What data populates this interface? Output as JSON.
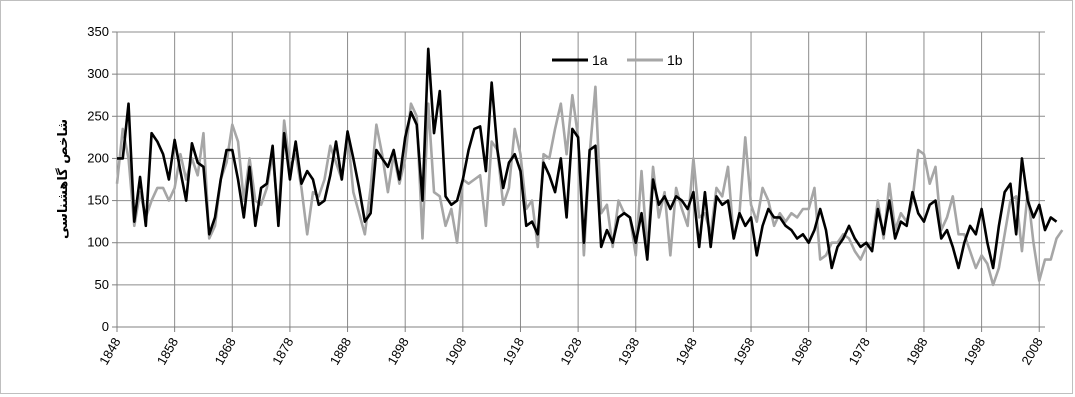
{
  "chart_data": {
    "type": "line",
    "title": "",
    "xlabel": "",
    "ylabel": "شاخص گاهشناسی",
    "xlim": [
      1848,
      2009
    ],
    "ylim": [
      0,
      350
    ],
    "grid": true,
    "legend_position": "top-center",
    "x_ticks": [
      1848,
      1858,
      1868,
      1878,
      1888,
      1898,
      1908,
      1918,
      1928,
      1938,
      1948,
      1958,
      1968,
      1978,
      1988,
      1998,
      2008
    ],
    "y_ticks": [
      0,
      50,
      100,
      150,
      200,
      250,
      300,
      350
    ],
    "x_start": 1848,
    "series": [
      {
        "name": "1a",
        "color": "#000000",
        "values": [
          200,
          200,
          265,
          125,
          178,
          120,
          230,
          220,
          205,
          175,
          222,
          185,
          150,
          218,
          195,
          190,
          110,
          130,
          175,
          210,
          210,
          175,
          130,
          190,
          120,
          165,
          170,
          215,
          120,
          230,
          175,
          220,
          170,
          185,
          175,
          145,
          150,
          180,
          220,
          175,
          232,
          200,
          165,
          125,
          135,
          210,
          200,
          190,
          210,
          175,
          225,
          255,
          240,
          150,
          330,
          230,
          280,
          155,
          145,
          150,
          175,
          210,
          235,
          238,
          185,
          290,
          210,
          165,
          195,
          205,
          185,
          120,
          125,
          110,
          195,
          180,
          160,
          200,
          130,
          235,
          225,
          100,
          210,
          215,
          95,
          115,
          100,
          130,
          135,
          130,
          100,
          135,
          80,
          175,
          145,
          155,
          140,
          155,
          150,
          140,
          160,
          95,
          160,
          95,
          155,
          145,
          150,
          105,
          135,
          120,
          130,
          85,
          120,
          140,
          130,
          130,
          120,
          115,
          105,
          110,
          100,
          115,
          140,
          115,
          70,
          95,
          105,
          120,
          105,
          95,
          100,
          90,
          140,
          110,
          150,
          105,
          125,
          120,
          160,
          135,
          125,
          145,
          150,
          105,
          115,
          95,
          70,
          100,
          120,
          110,
          140,
          100,
          70,
          120,
          160,
          170,
          110,
          200,
          150,
          130,
          145,
          115,
          130,
          125
        ]
      },
      {
        "name": "1b",
        "color": "#a6a6a6",
        "values": [
          170,
          235,
          200,
          120,
          160,
          130,
          150,
          165,
          165,
          150,
          165,
          205,
          175,
          200,
          180,
          230,
          105,
          120,
          175,
          195,
          240,
          220,
          150,
          200,
          150,
          145,
          165,
          205,
          130,
          245,
          190,
          205,
          165,
          110,
          160,
          155,
          175,
          215,
          195,
          175,
          230,
          160,
          135,
          110,
          165,
          240,
          205,
          160,
          205,
          170,
          200,
          265,
          250,
          105,
          265,
          160,
          155,
          120,
          140,
          100,
          175,
          170,
          175,
          180,
          120,
          220,
          210,
          145,
          165,
          235,
          205,
          140,
          150,
          95,
          205,
          200,
          235,
          265,
          205,
          275,
          225,
          85,
          205,
          285,
          135,
          145,
          95,
          150,
          135,
          130,
          85,
          185,
          90,
          190,
          130,
          160,
          85,
          165,
          140,
          120,
          200,
          130,
          135,
          110,
          165,
          155,
          190,
          105,
          135,
          225,
          145,
          125,
          165,
          150,
          120,
          135,
          125,
          135,
          130,
          140,
          140,
          165,
          80,
          85,
          100,
          100,
          110,
          105,
          90,
          80,
          95,
          100,
          150,
          105,
          170,
          115,
          135,
          125,
          150,
          210,
          205,
          170,
          190,
          115,
          130,
          155,
          110,
          110,
          90,
          70,
          85,
          75,
          50,
          70,
          110,
          150,
          155,
          90,
          160,
          100,
          55,
          80,
          80,
          105,
          115
        ]
      }
    ]
  }
}
